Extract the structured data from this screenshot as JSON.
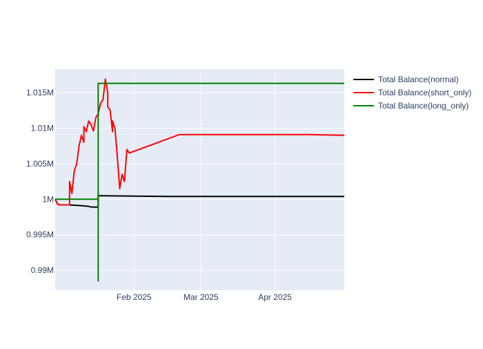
{
  "chart_data": {
    "type": "line",
    "title": "",
    "xlabel": "",
    "ylabel": "",
    "x_range": [
      "2024-12-30",
      "2025-04-30"
    ],
    "y_range": [
      987200,
      1018300
    ],
    "x_ticks": [
      {
        "date": "2025-02-01",
        "label": "Feb 2025"
      },
      {
        "date": "2025-03-01",
        "label": "Mar 2025"
      },
      {
        "date": "2025-04-01",
        "label": "Apr 2025"
      }
    ],
    "y_ticks": [
      {
        "value": 990000,
        "label": "0.99M"
      },
      {
        "value": 995000,
        "label": "0.995M"
      },
      {
        "value": 1000000,
        "label": "1M"
      },
      {
        "value": 1005000,
        "label": "1.005M"
      },
      {
        "value": 1010000,
        "label": "1.01M"
      },
      {
        "value": 1015000,
        "label": "1.015M"
      }
    ],
    "grid": true,
    "legend_position": "right",
    "plot_background": "#E5ECF6",
    "series": [
      {
        "name": "Total Balance(normal)",
        "color": "#000000",
        "x": [
          "2024-12-30",
          "2024-12-31",
          "2025-01-01",
          "2025-01-05",
          "2025-01-10",
          "2025-01-13",
          "2025-01-14",
          "2025-01-15",
          "2025-01-17",
          "2025-01-17",
          "2025-01-18",
          "2025-02-15",
          "2025-04-30"
        ],
        "y": [
          1000000,
          999300,
          999200,
          999200,
          999100,
          999000,
          998900,
          998900,
          998900,
          1000500,
          1000500,
          1000400,
          1000400
        ]
      },
      {
        "name": "Total Balance(short_only)",
        "color": "#FF0000",
        "x": [
          "2024-12-30",
          "2024-12-31",
          "2025-01-01",
          "2025-01-02",
          "2025-01-03",
          "2025-01-04",
          "2025-01-05",
          "2025-01-05",
          "2025-01-06",
          "2025-01-07",
          "2025-01-08",
          "2025-01-09",
          "2025-01-10",
          "2025-01-11",
          "2025-01-11",
          "2025-01-12",
          "2025-01-13",
          "2025-01-14",
          "2025-01-15",
          "2025-01-16",
          "2025-01-17",
          "2025-01-18",
          "2025-01-19",
          "2025-01-20",
          "2025-01-21",
          "2025-01-21",
          "2025-01-22",
          "2025-01-23",
          "2025-01-23",
          "2025-01-24",
          "2025-01-25",
          "2025-01-26",
          "2025-01-27",
          "2025-01-28",
          "2025-01-29",
          "2025-01-30",
          "2025-02-20",
          "2025-04-15",
          "2025-04-30"
        ],
        "y": [
          1000000,
          999300,
          999200,
          999200,
          999200,
          999200,
          999200,
          1002500,
          1000800,
          1004000,
          1005000,
          1007500,
          1009000,
          1008000,
          1010200,
          1009500,
          1011000,
          1010500,
          1009600,
          1011500,
          1012000,
          1013500,
          1014000,
          1016900,
          1015000,
          1013000,
          1012500,
          1009500,
          1011000,
          1010000,
          1006000,
          1001500,
          1003500,
          1002500,
          1007000,
          1006500,
          1009100,
          1009100,
          1009000
        ]
      },
      {
        "name": "Total Balance(long_only)",
        "color": "#008000",
        "x": [
          "2024-12-30",
          "2025-01-17",
          "2025-01-17",
          "2025-01-17",
          "2025-01-17",
          "2025-01-17",
          "2025-04-30"
        ],
        "y": [
          1000000,
          1000000,
          988500,
          998000,
          1016300,
          1016300,
          1016300
        ]
      }
    ]
  }
}
